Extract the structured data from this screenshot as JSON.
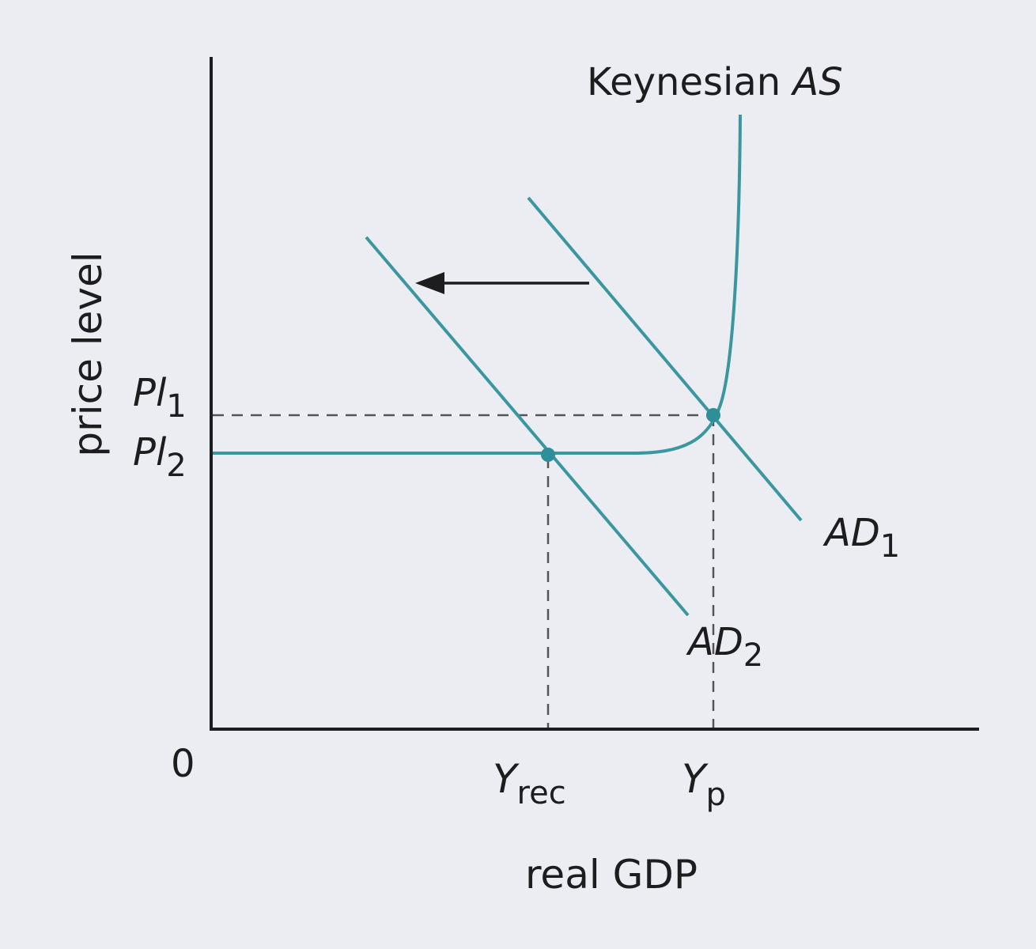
{
  "colors": {
    "background": "#ecedf3",
    "curve": "#3a97a0",
    "axis": "#1d1d1f",
    "guide": "#555555"
  },
  "axes": {
    "y_label": "price level",
    "x_label": "real GDP",
    "origin": "0"
  },
  "price_levels": {
    "pl1": {
      "main": "Pl",
      "sub": "1"
    },
    "pl2": {
      "main": "Pl",
      "sub": "2"
    }
  },
  "outputs": {
    "y_rec": {
      "main": "Y",
      "sub": "rec"
    },
    "y_p": {
      "main": "Y",
      "sub": "p"
    }
  },
  "curves": {
    "as": {
      "main": "Keynesian ",
      "italic": "AS"
    },
    "ad1": {
      "main": "AD",
      "sub": "1"
    },
    "ad2": {
      "main": "AD",
      "sub": "2"
    }
  },
  "shift_direction": "left"
}
